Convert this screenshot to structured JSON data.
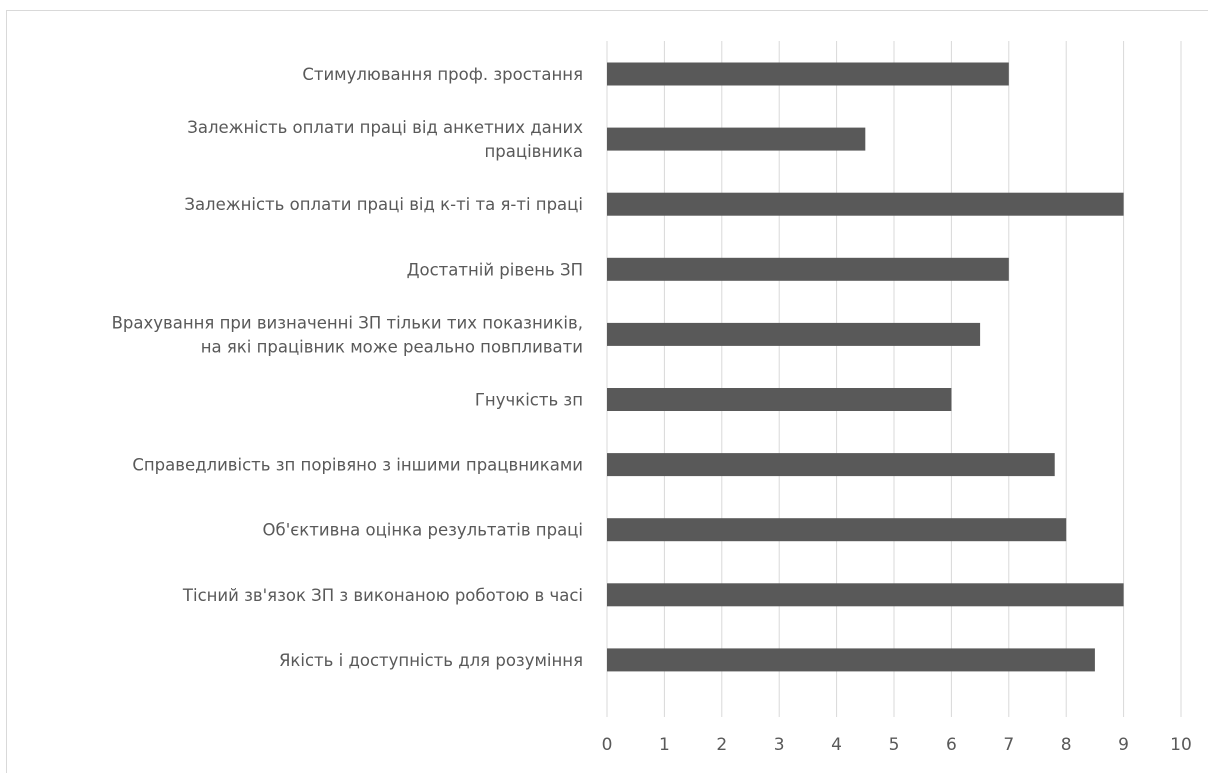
{
  "chart_data": {
    "type": "bar",
    "orientation": "horizontal",
    "categories": [
      "Стимулювання проф. зростання",
      "Залежність оплати праці від анкетних даних працівника",
      "Залежність оплати праці від к-ті та я-ті праці",
      "Достатній рівень ЗП",
      "Врахування при визначенні ЗП тільки тих показників, на які працівник може реально повпливати",
      "Гнучкість зп",
      "Справедливість зп порівяно з іншими працвниками",
      "Об'єктивна оцінка результатів праці",
      "Тісний зв'язок ЗП з виконаною роботою в часі",
      "Якість і доступність для розуміння"
    ],
    "category_lines": [
      [
        "Стимулювання проф. зростання"
      ],
      [
        "Залежність оплати праці від анкетних даних",
        "працівника"
      ],
      [
        "Залежність оплати праці від к-ті та я-ті праці"
      ],
      [
        "Достатній рівень ЗП"
      ],
      [
        "Врахування при визначенні ЗП тільки тих показників,",
        "на які працівник може реально повпливати"
      ],
      [
        "Гнучкість зп"
      ],
      [
        "Справедливість зп порівяно з іншими працвниками"
      ],
      [
        "Об'єктивна оцінка результатів праці"
      ],
      [
        "Тісний зв'язок ЗП з виконаною роботою в часі"
      ],
      [
        "Якість і доступність для розуміння"
      ]
    ],
    "values": [
      7,
      4.5,
      9,
      7,
      6.5,
      6,
      7.8,
      8,
      9,
      8.5
    ],
    "xlim": [
      0,
      10
    ],
    "x_ticks": [
      0,
      1,
      2,
      3,
      4,
      5,
      6,
      7,
      8,
      9,
      10
    ],
    "title": "",
    "xlabel": "",
    "ylabel": "",
    "grid": "vertical",
    "legend": "none",
    "bar_color": "#595959",
    "grid_color": "#d9d9d9",
    "text_color": "#595959"
  }
}
